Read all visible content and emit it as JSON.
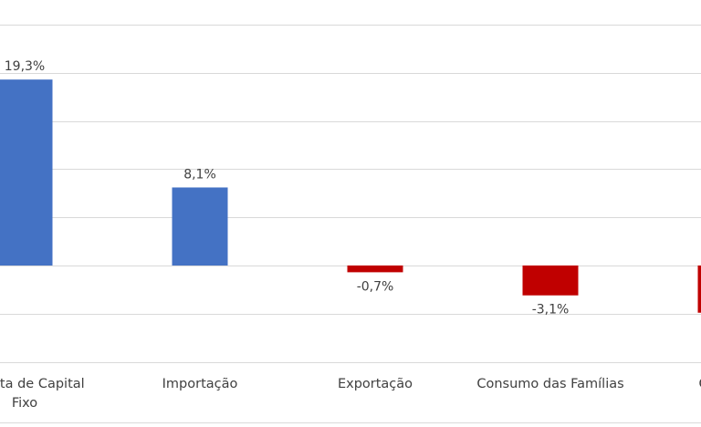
{
  "chart_data": {
    "type": "bar",
    "title": "",
    "categories": [
      "Formação Bruta de Capital Fixo",
      "Importação",
      "Exportação",
      "Consumo das Famílias",
      "Consumo do Governo"
    ],
    "category_label_lines": [
      [
        "o Bruta de Capital",
        "Fixo"
      ],
      [
        "Importação"
      ],
      [
        "Exportação"
      ],
      [
        "Consumo das Famílias"
      ],
      [
        "Consum"
      ]
    ],
    "values": [
      19.3,
      8.1,
      -0.7,
      -3.1,
      -4.9
    ],
    "data_labels": [
      "19,3%",
      "8,1%",
      "-0,7%",
      "-3,1%",
      ""
    ],
    "ylim": [
      -10,
      30
    ],
    "grid": true,
    "colors": {
      "positive": "#4472C4",
      "negative": "#C00000",
      "grid": "#d9d9d9",
      "text": "#404040"
    }
  }
}
